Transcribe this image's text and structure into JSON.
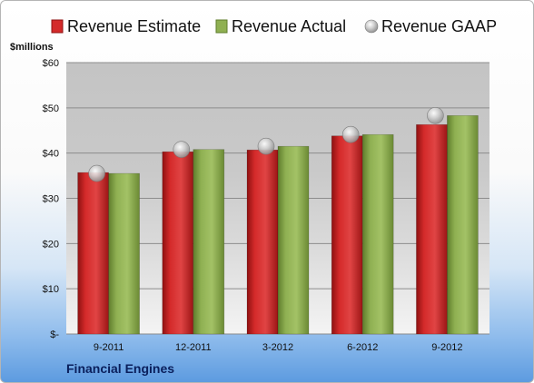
{
  "chart_data": {
    "type": "bar",
    "title": "",
    "ylabel": "$millions",
    "xlabel": "",
    "ylim": [
      0,
      60
    ],
    "yticks": [
      0,
      10,
      20,
      30,
      40,
      50,
      60
    ],
    "ytick_labels": [
      "$-",
      "$10",
      "$20",
      "$30",
      "$40",
      "$50",
      "$60"
    ],
    "categories": [
      "9-2011",
      "12-2011",
      "3-2012",
      "6-2012",
      "9-2012"
    ],
    "series": [
      {
        "name": "Revenue Estimate",
        "type": "bar",
        "color": "#d42a2a",
        "values": [
          35.7,
          40.3,
          40.7,
          43.8,
          46.3
        ]
      },
      {
        "name": "Revenue Actual",
        "type": "bar",
        "color": "#8fb052",
        "values": [
          35.5,
          40.8,
          41.5,
          44.1,
          48.3
        ]
      },
      {
        "name": "Revenue GAAP",
        "type": "marker",
        "color": "#c8c8c8",
        "values": [
          35.5,
          40.8,
          41.5,
          44.1,
          48.3
        ]
      }
    ],
    "legend": "top",
    "grid": true
  },
  "footer": {
    "company": "Financial Engines"
  }
}
